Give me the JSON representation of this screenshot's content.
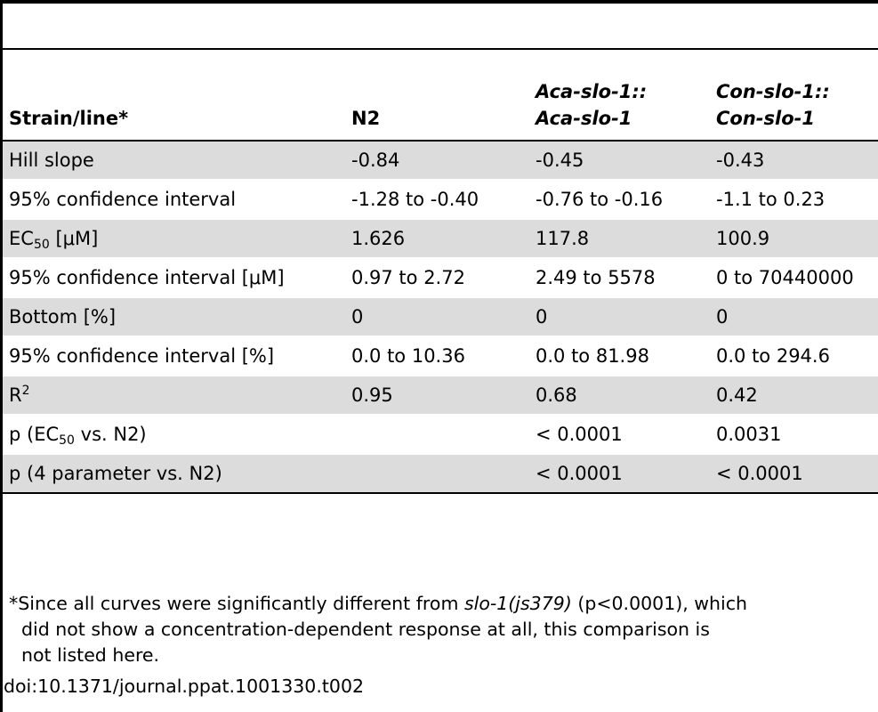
{
  "table": {
    "headers": {
      "col1": "Strain/line*",
      "col2": "N2",
      "col3_line1": "Aca-slo-1::",
      "col3_line2": "Aca-slo-1",
      "col4_line1": "Con-slo-1::",
      "col4_line2": "Con-slo-1"
    },
    "rows": [
      {
        "label": "Hill slope",
        "n2": "-0.84",
        "aca": "-0.45",
        "con": "-0.43"
      },
      {
        "label": "95% confidence interval",
        "n2": "-1.28 to -0.40",
        "aca": "-0.76 to -0.16",
        "con": "-1.1 to 0.23"
      },
      {
        "label_main": "EC",
        "label_sub": "50",
        "label_tail": " [μM]",
        "n2": "1.626",
        "aca": "117.8",
        "con": "100.9"
      },
      {
        "label": "95% confidence interval [μM]",
        "n2": "0.97 to 2.72",
        "aca": "2.49 to 5578",
        "con": "0 to 70440000"
      },
      {
        "label": "Bottom [%]",
        "n2": "0",
        "aca": "0",
        "con": "0"
      },
      {
        "label": "95% confidence interval [%]",
        "n2": "0.0 to 10.36",
        "aca": "0.0 to 81.98",
        "con": "0.0 to 294.6"
      },
      {
        "label_main": "R",
        "label_sup": "2",
        "n2": "0.95",
        "aca": "0.68",
        "con": "0.42"
      },
      {
        "label_main": "p (EC",
        "label_sub": "50",
        "label_tail": " vs. N2)",
        "n2": "",
        "aca": "< 0.0001",
        "con": "0.0031"
      },
      {
        "label": "p (4 parameter vs. N2)",
        "n2": "",
        "aca": "< 0.0001",
        "con": "< 0.0001"
      }
    ]
  },
  "footnote": {
    "part1": "*Since all curves were significantly different from ",
    "italic": "slo-1(js379)",
    "part2": " (p<0.0001), which",
    "line2": "did not show a concentration-dependent response at all, this comparison is",
    "line3": "not listed here."
  },
  "doi": "doi:10.1371/journal.ppat.1001330.t002"
}
